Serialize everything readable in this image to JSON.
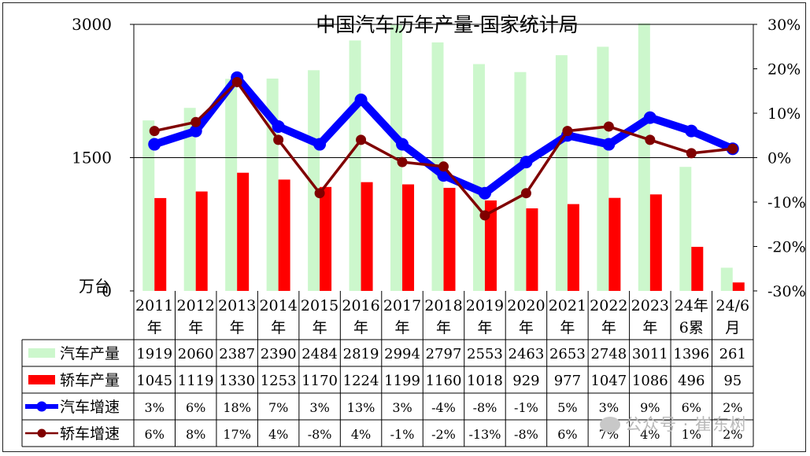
{
  "chart_data": {
    "type": "bar+line",
    "title": "中国汽车历年产量-国家统计局",
    "unit_label": "万台",
    "categories": [
      [
        "2011",
        "年"
      ],
      [
        "2012",
        "年"
      ],
      [
        "2013",
        "年"
      ],
      [
        "2014",
        "年"
      ],
      [
        "2015",
        "年"
      ],
      [
        "2016",
        "年"
      ],
      [
        "2017",
        "年"
      ],
      [
        "2018",
        "年"
      ],
      [
        "2019",
        "年"
      ],
      [
        "2020",
        "年"
      ],
      [
        "2021",
        "年"
      ],
      [
        "2022",
        "年"
      ],
      [
        "2023",
        "年"
      ],
      [
        "24年",
        "6累"
      ],
      [
        "24/6",
        "月"
      ]
    ],
    "left_axis": {
      "min": 0,
      "max": 3000,
      "ticks": [
        0,
        1500,
        3000
      ]
    },
    "right_axis": {
      "min": -30,
      "max": 30,
      "ticks": [
        "30%",
        "20%",
        "10%",
        "0%",
        "-10%",
        "-20%",
        "-30%"
      ]
    },
    "bar_series": [
      {
        "name": "汽车产量",
        "color": "#ccf7cc",
        "values": [
          1919,
          2060,
          2387,
          2390,
          2484,
          2819,
          2994,
          2797,
          2553,
          2463,
          2653,
          2748,
          3011,
          1396,
          261
        ]
      },
      {
        "name": "轿车产量",
        "color": "#ff0000",
        "values": [
          1045,
          1119,
          1330,
          1253,
          1170,
          1224,
          1199,
          1160,
          1018,
          929,
          977,
          1047,
          1086,
          496,
          95
        ]
      }
    ],
    "line_series": [
      {
        "name": "汽车增速",
        "color": "#0000ff",
        "values": [
          3,
          6,
          18,
          7,
          3,
          13,
          3,
          -4,
          -8,
          -1,
          5,
          3,
          9,
          6,
          2
        ],
        "labels": [
          "3%",
          "6%",
          "18%",
          "7%",
          "3%",
          "13%",
          "3%",
          "-4%",
          "-8%",
          "-1%",
          "5%",
          "3%",
          "9%",
          "6%",
          "2%"
        ]
      },
      {
        "name": "轿车增速",
        "color": "#800000",
        "values": [
          6,
          8,
          17,
          4,
          -8,
          4,
          -1,
          -2,
          -13,
          -8,
          6,
          7,
          4,
          1,
          2
        ],
        "labels": [
          "6%",
          "8%",
          "17%",
          "4%",
          "-8%",
          "4%",
          "-1%",
          "-2%",
          "-13%",
          "-8%",
          "6%",
          "7%",
          "4%",
          "1%",
          "2%"
        ]
      }
    ],
    "grid": false,
    "legend": "data-table"
  },
  "watermark": {
    "text": "公众号 · 崔东树",
    "icon": "wechat-icon"
  }
}
